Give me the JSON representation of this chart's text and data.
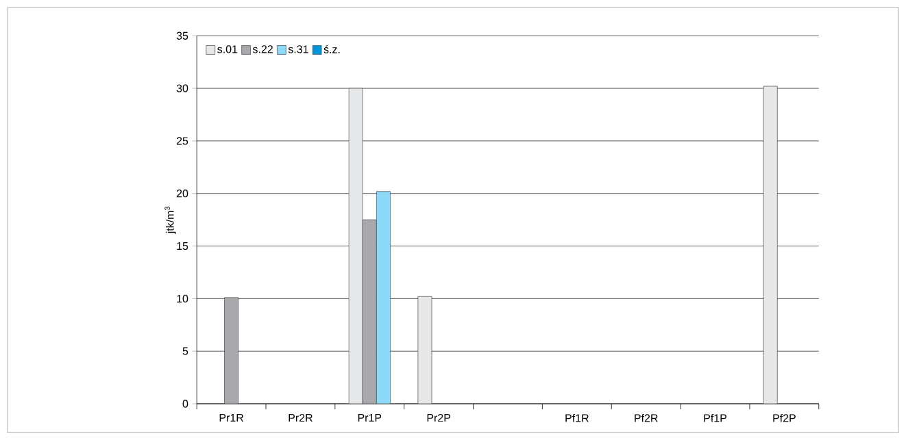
{
  "chart_data": {
    "type": "bar",
    "ylabel": "jtk/m$^{3}$",
    "categories": [
      "Pr1R",
      "Pr2R",
      "Pr1P",
      "Pr2P",
      null,
      "Pf1R",
      "Pf2R",
      "Pf1P",
      "Pf2P"
    ],
    "series": [
      {
        "name": "s.01",
        "color": "#e6e7e8",
        "values": [
          null,
          null,
          30,
          10.2,
          null,
          null,
          null,
          null,
          30.2
        ]
      },
      {
        "name": "s.22",
        "color": "#a7a9ac",
        "values": [
          10.1,
          null,
          17.5,
          null,
          null,
          null,
          null,
          null,
          null
        ]
      },
      {
        "name": "s.31",
        "color": "#8ed8f8",
        "values": [
          null,
          null,
          20.2,
          null,
          null,
          null,
          null,
          null,
          null
        ]
      },
      {
        "name": "ś.z.",
        "color": "#0095d9",
        "values": [
          null,
          null,
          null,
          null,
          null,
          null,
          null,
          null,
          null
        ]
      }
    ],
    "ylim": [
      0,
      35
    ],
    "yticks": [
      0,
      5,
      10,
      15,
      20,
      25,
      30,
      35
    ],
    "grid": "y",
    "legend": "top left"
  }
}
